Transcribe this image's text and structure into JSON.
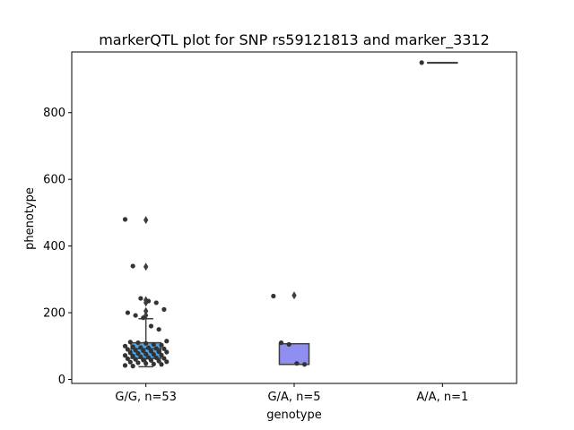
{
  "chart_data": {
    "type": "box",
    "title": "markerQTL plot for SNP rs59121813 and marker_3312",
    "xlabel": "genotype",
    "ylabel": "phenotype",
    "ylim": [
      -12,
      982
    ],
    "yticks": [
      0,
      200,
      400,
      600,
      800
    ],
    "grid": false,
    "categories": [
      "G/G, n=53",
      "G/A, n=5",
      "A/A, n=1"
    ],
    "boxes": [
      {
        "category": "G/G, n=53",
        "color": "#4da6e8",
        "q1": 63,
        "median": 92,
        "q3": 110,
        "whisker_low": 38,
        "whisker_high": 182,
        "outliers": [
          192,
          205,
          230,
          238,
          338,
          478
        ]
      },
      {
        "category": "G/A, n=5",
        "color": "#8f8ff2",
        "q1": 45,
        "median": 45,
        "q3": 107,
        "whisker_low": 45,
        "whisker_high": 107,
        "outliers": [
          252
        ]
      },
      {
        "category": "A/A, n=1",
        "color": "#e8a0a0",
        "q1": 950,
        "median": 950,
        "q3": 950,
        "whisker_low": 950,
        "whisker_high": 950,
        "outliers": []
      }
    ],
    "points": [
      {
        "category": 0,
        "values": [
          480,
          340,
          243,
          235,
          230,
          210,
          200,
          192,
          185,
          160,
          150,
          115,
          112,
          110,
          108,
          105,
          103,
          100,
          98,
          96,
          95,
          93,
          92,
          90,
          88,
          86,
          85,
          83,
          82,
          80,
          78,
          76,
          75,
          73,
          72,
          70,
          68,
          66,
          65,
          63,
          62,
          60,
          58,
          57,
          55,
          53,
          52,
          50,
          48,
          46,
          45,
          42,
          40
        ]
      },
      {
        "category": 1,
        "values": [
          250,
          110,
          105,
          48,
          45
        ]
      },
      {
        "category": 2,
        "values": [
          950
        ]
      }
    ],
    "point_color": "#333333"
  }
}
